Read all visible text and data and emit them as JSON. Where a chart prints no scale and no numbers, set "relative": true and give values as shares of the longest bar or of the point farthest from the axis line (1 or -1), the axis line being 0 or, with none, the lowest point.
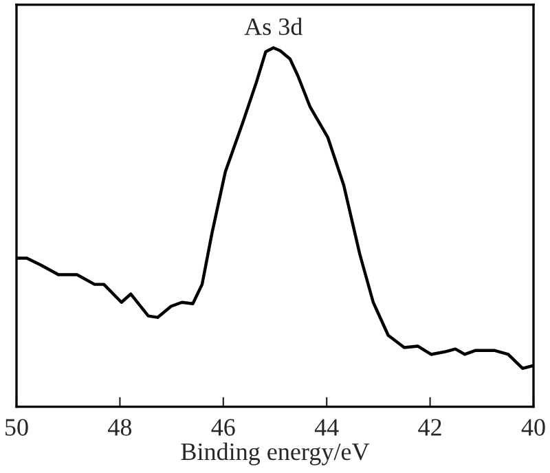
{
  "chart_data": {
    "type": "line",
    "relative": true,
    "xlabel": "Binding energy/eV",
    "xlim": [
      50,
      40
    ],
    "xticks": [
      50,
      48,
      46,
      44,
      42,
      40
    ],
    "tick_labels": "x",
    "grid": false,
    "color": "#000000",
    "annotations": [
      {
        "text": "As 3d",
        "x": 45.03,
        "y": 1.0
      }
    ],
    "x": [
      50,
      49.8,
      49.53,
      49.19,
      48.83,
      48.49,
      48.31,
      47.97,
      47.79,
      47.45,
      47.27,
      47.01,
      46.8,
      46.59,
      46.41,
      46.22,
      45.96,
      45.63,
      45.36,
      45.18,
      45.03,
      44.9,
      44.71,
      44.56,
      44.32,
      43.98,
      43.67,
      43.36,
      43.1,
      42.81,
      42.5,
      42.24,
      41.98,
      41.72,
      41.51,
      41.33,
      41.12,
      40.76,
      40.49,
      40.21,
      40.0
    ],
    "values": [
      0.414,
      0.414,
      0.395,
      0.368,
      0.368,
      0.341,
      0.341,
      0.291,
      0.314,
      0.253,
      0.249,
      0.28,
      0.291,
      0.287,
      0.341,
      0.483,
      0.655,
      0.789,
      0.904,
      0.989,
      1.0,
      0.992,
      0.969,
      0.923,
      0.835,
      0.751,
      0.617,
      0.425,
      0.291,
      0.199,
      0.165,
      0.169,
      0.146,
      0.153,
      0.161,
      0.146,
      0.157,
      0.157,
      0.146,
      0.107,
      0.115
    ]
  }
}
